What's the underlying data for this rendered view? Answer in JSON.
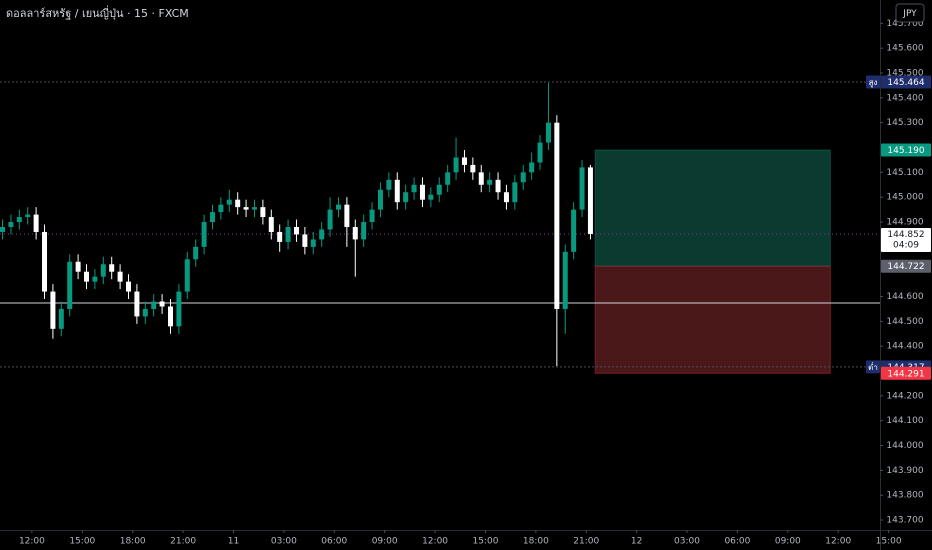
{
  "chart_data": {
    "type": "candlestick",
    "title": "ดอลลาร์สหรัฐ / เยนญี่ปุ่น · 15 · FXCM",
    "currency_button": "JPY",
    "up_color": "#089981",
    "down_color": "#ffffff",
    "x": [
      10.25,
      10.75,
      11.25,
      11.75,
      12.25,
      12.75,
      13.25,
      13.75,
      14.25,
      14.75,
      15.25,
      15.75,
      16.25,
      16.75,
      17.25,
      17.75,
      18.25,
      18.75,
      19.25,
      19.75,
      20.25,
      20.75,
      21.25,
      21.75,
      22.25,
      22.75,
      23.25,
      23.75,
      24.25,
      24.75,
      25.25,
      25.75,
      26.25,
      26.75,
      27.25,
      27.75,
      28.25,
      28.75,
      29.25,
      29.75,
      30.25,
      30.75,
      31.25,
      31.75,
      32.25,
      32.75,
      33.25,
      33.75,
      34.25,
      34.75,
      35.25,
      35.75,
      36.25,
      36.75,
      37.25,
      37.75,
      38.25,
      38.75,
      39.25,
      39.75,
      40.25,
      40.75,
      41.25,
      41.75,
      42.25,
      42.75,
      43.25,
      43.75,
      44.25,
      44.75,
      45.25
    ],
    "open": [
      144.86,
      144.88,
      144.9,
      144.92,
      144.93,
      144.86,
      144.62,
      144.47,
      144.55,
      144.74,
      144.7,
      144.66,
      144.68,
      144.73,
      144.7,
      144.66,
      144.62,
      144.52,
      144.55,
      144.58,
      144.56,
      144.48,
      144.62,
      144.75,
      144.8,
      144.9,
      144.94,
      144.97,
      144.99,
      144.96,
      144.95,
      144.96,
      144.92,
      144.86,
      144.82,
      144.88,
      144.85,
      144.8,
      144.83,
      144.87,
      144.95,
      144.97,
      144.88,
      144.83,
      144.9,
      144.95,
      145.03,
      145.07,
      144.98,
      145.02,
      145.05,
      144.99,
      145.01,
      145.05,
      145.1,
      145.16,
      145.13,
      145.1,
      145.05,
      145.07,
      145.02,
      144.98,
      145.06,
      145.1,
      145.14,
      145.22,
      145.3,
      144.55,
      144.78,
      144.95,
      145.12
    ],
    "high": [
      144.91,
      144.93,
      144.95,
      144.96,
      144.96,
      144.89,
      144.65,
      144.58,
      144.77,
      144.77,
      144.73,
      144.71,
      144.76,
      144.76,
      144.73,
      144.69,
      144.65,
      144.58,
      144.61,
      144.61,
      144.59,
      144.65,
      144.78,
      144.83,
      144.93,
      144.97,
      145.0,
      145.03,
      145.02,
      144.99,
      144.99,
      144.99,
      144.95,
      144.89,
      144.91,
      144.91,
      144.88,
      144.86,
      144.9,
      145.0,
      145.0,
      145.0,
      144.91,
      144.93,
      144.98,
      145.06,
      145.1,
      145.1,
      145.05,
      145.08,
      145.08,
      145.04,
      145.08,
      145.13,
      145.24,
      145.19,
      145.16,
      145.13,
      145.1,
      145.1,
      145.05,
      145.09,
      145.13,
      145.18,
      145.25,
      145.46,
      145.33,
      144.81,
      144.98,
      145.15,
      145.13
    ],
    "low": [
      144.83,
      144.85,
      144.87,
      144.89,
      144.83,
      144.59,
      144.43,
      144.44,
      144.52,
      144.67,
      144.63,
      144.63,
      144.65,
      144.67,
      144.63,
      144.59,
      144.49,
      144.49,
      144.52,
      144.53,
      144.45,
      144.45,
      144.59,
      144.72,
      144.77,
      144.87,
      144.91,
      144.94,
      144.93,
      144.92,
      144.92,
      144.89,
      144.83,
      144.78,
      144.79,
      144.82,
      144.77,
      144.77,
      144.8,
      144.84,
      144.92,
      144.8,
      144.68,
      144.8,
      144.87,
      144.92,
      145.0,
      144.95,
      144.95,
      144.99,
      144.96,
      144.96,
      144.98,
      145.02,
      145.07,
      145.1,
      145.07,
      145.02,
      145.02,
      144.99,
      144.95,
      144.95,
      145.03,
      145.07,
      145.11,
      145.19,
      144.32,
      144.45,
      144.75,
      144.92,
      144.83
    ],
    "close": [
      144.88,
      144.9,
      144.92,
      144.93,
      144.86,
      144.62,
      144.47,
      144.55,
      144.74,
      144.7,
      144.66,
      144.68,
      144.73,
      144.7,
      144.66,
      144.62,
      144.52,
      144.55,
      144.58,
      144.56,
      144.48,
      144.62,
      144.75,
      144.8,
      144.9,
      144.94,
      144.97,
      144.99,
      144.96,
      144.95,
      144.96,
      144.92,
      144.86,
      144.82,
      144.88,
      144.85,
      144.8,
      144.83,
      144.87,
      144.95,
      144.97,
      144.88,
      144.83,
      144.9,
      144.95,
      145.03,
      145.07,
      144.98,
      145.02,
      145.05,
      144.99,
      145.01,
      145.05,
      145.1,
      145.16,
      145.13,
      145.1,
      145.05,
      145.07,
      145.02,
      144.98,
      145.06,
      145.1,
      145.14,
      145.22,
      145.3,
      144.55,
      144.78,
      144.95,
      145.12,
      144.852
    ],
    "xlim": [
      10.1,
      63.5
    ],
    "xticks": [
      {
        "value": 12,
        "label": "12:00"
      },
      {
        "value": 15,
        "label": "15:00"
      },
      {
        "value": 18,
        "label": "18:00"
      },
      {
        "value": 21,
        "label": "21:00"
      },
      {
        "value": 24,
        "label": "11"
      },
      {
        "value": 27,
        "label": "03:00"
      },
      {
        "value": 30,
        "label": "06:00"
      },
      {
        "value": 33,
        "label": "09:00"
      },
      {
        "value": 36,
        "label": "12:00"
      },
      {
        "value": 39,
        "label": "15:00"
      },
      {
        "value": 42,
        "label": "18:00"
      },
      {
        "value": 45,
        "label": "21:00"
      },
      {
        "value": 48,
        "label": "12"
      },
      {
        "value": 51,
        "label": "03:00"
      },
      {
        "value": 54,
        "label": "06:00"
      },
      {
        "value": 57,
        "label": "09:00"
      },
      {
        "value": 60,
        "label": "12:00"
      },
      {
        "value": 63,
        "label": "15:00"
      }
    ],
    "ylim": [
      143.66,
      145.794
    ],
    "yticks": [
      {
        "value": 145.7,
        "label": "145.700"
      },
      {
        "value": 145.6,
        "label": "145.600"
      },
      {
        "value": 145.5,
        "label": "145.500"
      },
      {
        "value": 145.4,
        "label": "145.400"
      },
      {
        "value": 145.3,
        "label": "145.300"
      },
      {
        "value": 145.1,
        "label": "145.100"
      },
      {
        "value": 145.0,
        "label": "145.000"
      },
      {
        "value": 144.9,
        "label": "144.900"
      },
      {
        "value": 144.6,
        "label": "144.600"
      },
      {
        "value": 144.5,
        "label": "144.500"
      },
      {
        "value": 144.4,
        "label": "144.400"
      },
      {
        "value": 144.2,
        "label": "144.200"
      },
      {
        "value": 144.1,
        "label": "144.100"
      },
      {
        "value": 144.0,
        "label": "144.000"
      },
      {
        "value": 143.9,
        "label": "143.900"
      },
      {
        "value": 143.8,
        "label": "143.800"
      },
      {
        "value": 143.7,
        "label": "143.700"
      }
    ],
    "hlines": [
      {
        "value": 145.464,
        "color": "#4a4e5a",
        "dash": "2 2"
      },
      {
        "value": 144.317,
        "color": "#4a4e5a",
        "dash": "2 2"
      },
      {
        "value": 144.574,
        "color": "#d1d4dc",
        "dash": "none"
      },
      {
        "value": 144.852,
        "color": "#9c27b0",
        "dash": "1 3"
      }
    ],
    "position": {
      "x": [
        45.53,
        59.53
      ],
      "entry": 144.722,
      "target": 145.19,
      "stop": 144.291,
      "profit_color": "#0a3a30",
      "loss_color": "#4a1818"
    },
    "price_labels": [
      {
        "value": 145.464,
        "label": "145.464",
        "prefix": "สูง",
        "bg": "#1e2d6b",
        "fg": "#ffffff"
      },
      {
        "value": 145.19,
        "label": "145.190",
        "bg": "#089981",
        "fg": "#ffffff"
      },
      {
        "value": 144.852,
        "label": "144.852",
        "sub": "04:09",
        "bg": "#ffffff",
        "fg": "#131722"
      },
      {
        "value": 144.722,
        "label": "144.722",
        "bg": "#5d606b",
        "fg": "#ffffff"
      },
      {
        "value": 144.317,
        "label": "144.317",
        "prefix": "ต่ำ",
        "bg": "#1e2d6b",
        "fg": "#ffffff"
      },
      {
        "value": 144.291,
        "label": "144.291",
        "bg": "#f23645",
        "fg": "#ffffff"
      }
    ]
  }
}
